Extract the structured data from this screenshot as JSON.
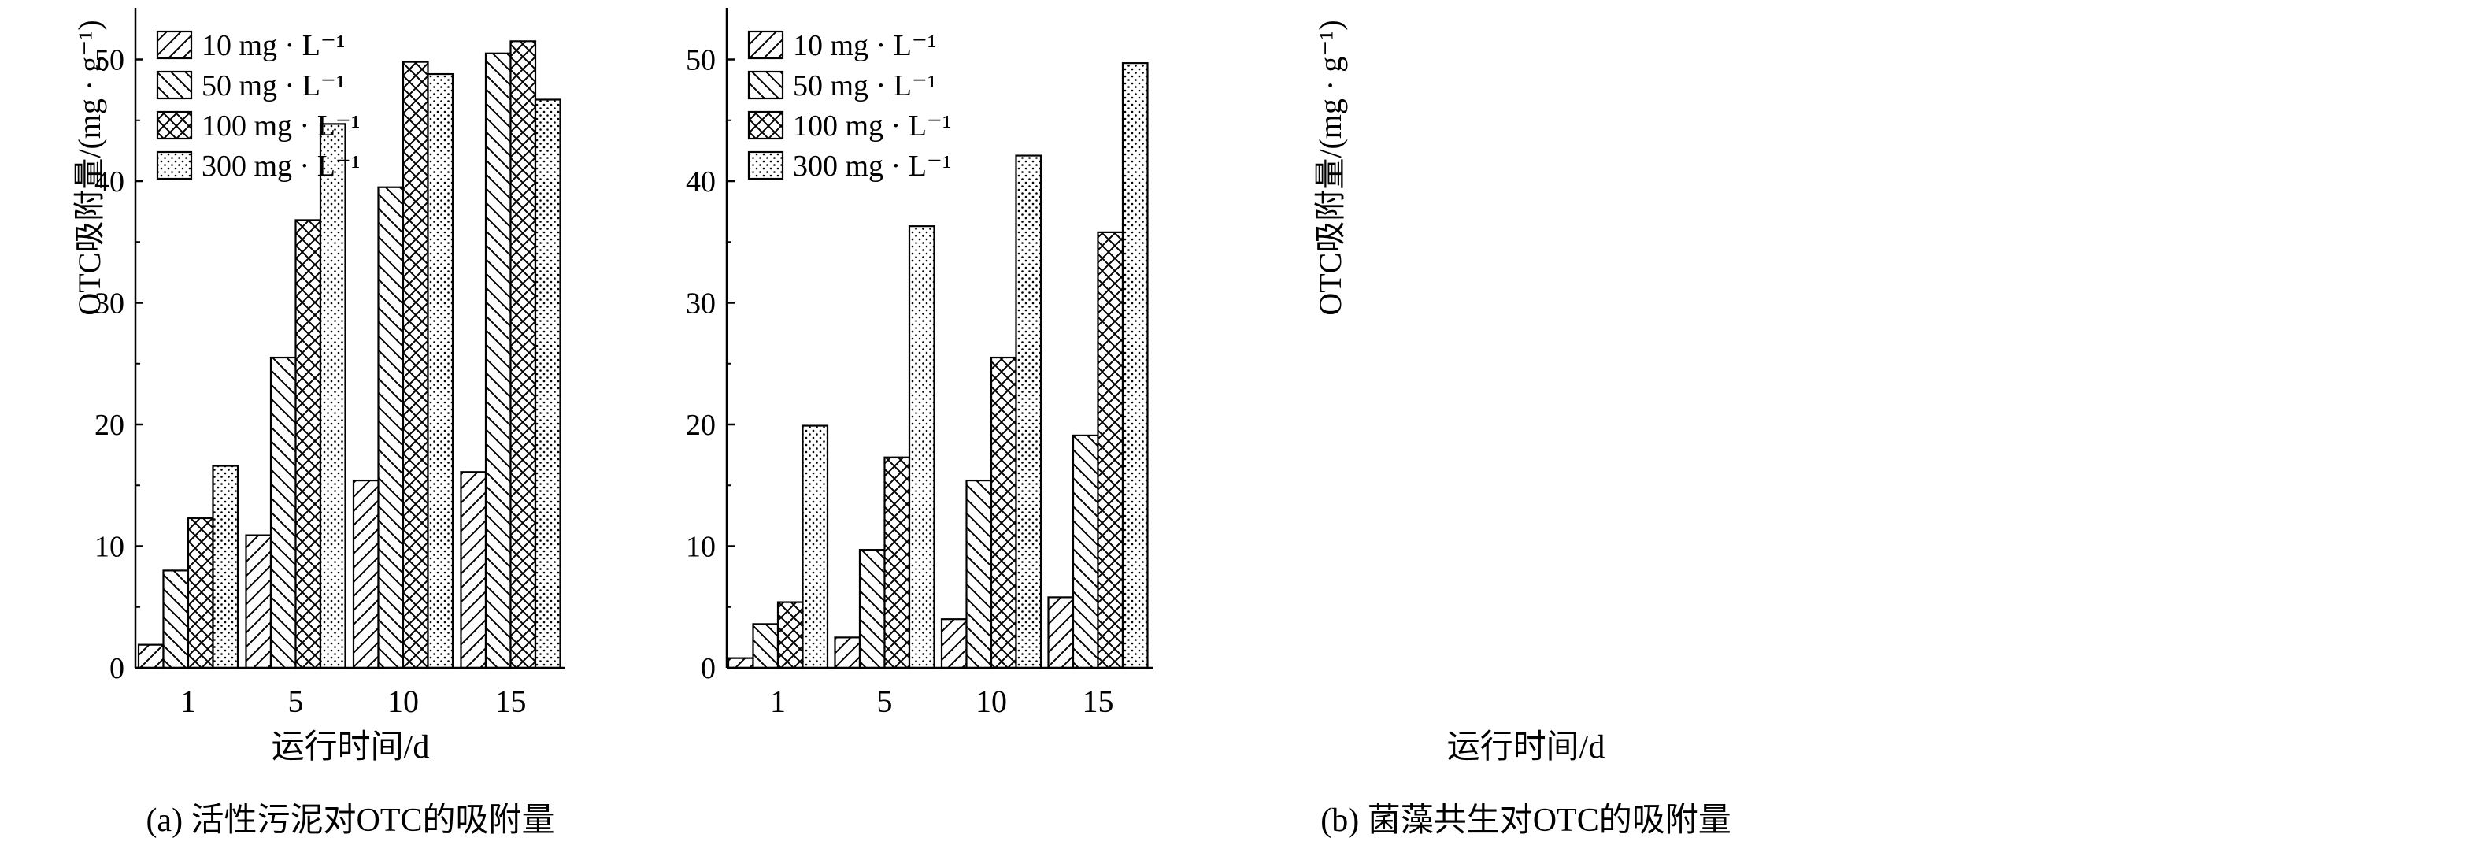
{
  "chart_data": [
    {
      "type": "bar",
      "caption": "(a) 活性污泥对OTC的吸附量",
      "xlabel": "运行时间/d",
      "ylabel": "OTC吸附量/(mg · g⁻¹)",
      "categories": [
        "1",
        "5",
        "10",
        "15"
      ],
      "ylim": [
        0,
        55
      ],
      "yticks": [
        0,
        10,
        20,
        30,
        40,
        50
      ],
      "grid": false,
      "legend_position": "top-left",
      "series": [
        {
          "name": "10 mg · L⁻¹",
          "pattern": "hatch-forward",
          "values": [
            1.9,
            10.9,
            15.4,
            16.1
          ]
        },
        {
          "name": "50 mg · L⁻¹",
          "pattern": "hatch-back",
          "values": [
            8.0,
            25.5,
            39.5,
            50.5
          ]
        },
        {
          "name": "100 mg · L⁻¹",
          "pattern": "crosshatch",
          "values": [
            12.3,
            36.8,
            49.8,
            51.5
          ]
        },
        {
          "name": "300 mg · L⁻¹",
          "pattern": "dots",
          "values": [
            16.6,
            44.7,
            48.8,
            46.7
          ]
        }
      ]
    },
    {
      "type": "bar",
      "caption": "(b) 菌藻共生对OTC的吸附量",
      "xlabel": "运行时间/d",
      "ylabel": "OTC吸附量/(mg · g⁻¹)",
      "categories": [
        "1",
        "5",
        "10",
        "15"
      ],
      "ylim": [
        0,
        55
      ],
      "yticks": [
        0,
        10,
        20,
        30,
        40,
        50
      ],
      "grid": false,
      "legend_position": "top-left",
      "series": [
        {
          "name": "10 mg · L⁻¹",
          "pattern": "hatch-forward",
          "values": [
            0.8,
            2.5,
            4.0,
            5.8
          ]
        },
        {
          "name": "50 mg · L⁻¹",
          "pattern": "hatch-back",
          "values": [
            3.6,
            9.7,
            15.4,
            19.1
          ]
        },
        {
          "name": "100 mg · L⁻¹",
          "pattern": "crosshatch",
          "values": [
            5.4,
            17.3,
            25.5,
            35.8
          ]
        },
        {
          "name": "300 mg · L⁻¹",
          "pattern": "dots",
          "values": [
            19.9,
            36.3,
            42.1,
            49.7
          ]
        }
      ]
    }
  ]
}
